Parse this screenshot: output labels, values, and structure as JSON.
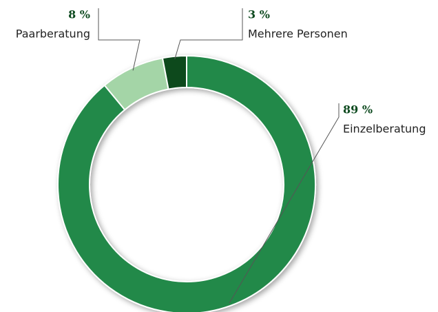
{
  "chart_data": {
    "type": "donut",
    "categories": [
      "Einzelberatung",
      "Paarberatung",
      "Mehrere Personen"
    ],
    "values": [
      89,
      8,
      3
    ],
    "value_labels": [
      "89 %",
      "8 %",
      "3 %"
    ],
    "colors": [
      "#23894a",
      "#a4d5a7",
      "#0a4a1d"
    ]
  }
}
